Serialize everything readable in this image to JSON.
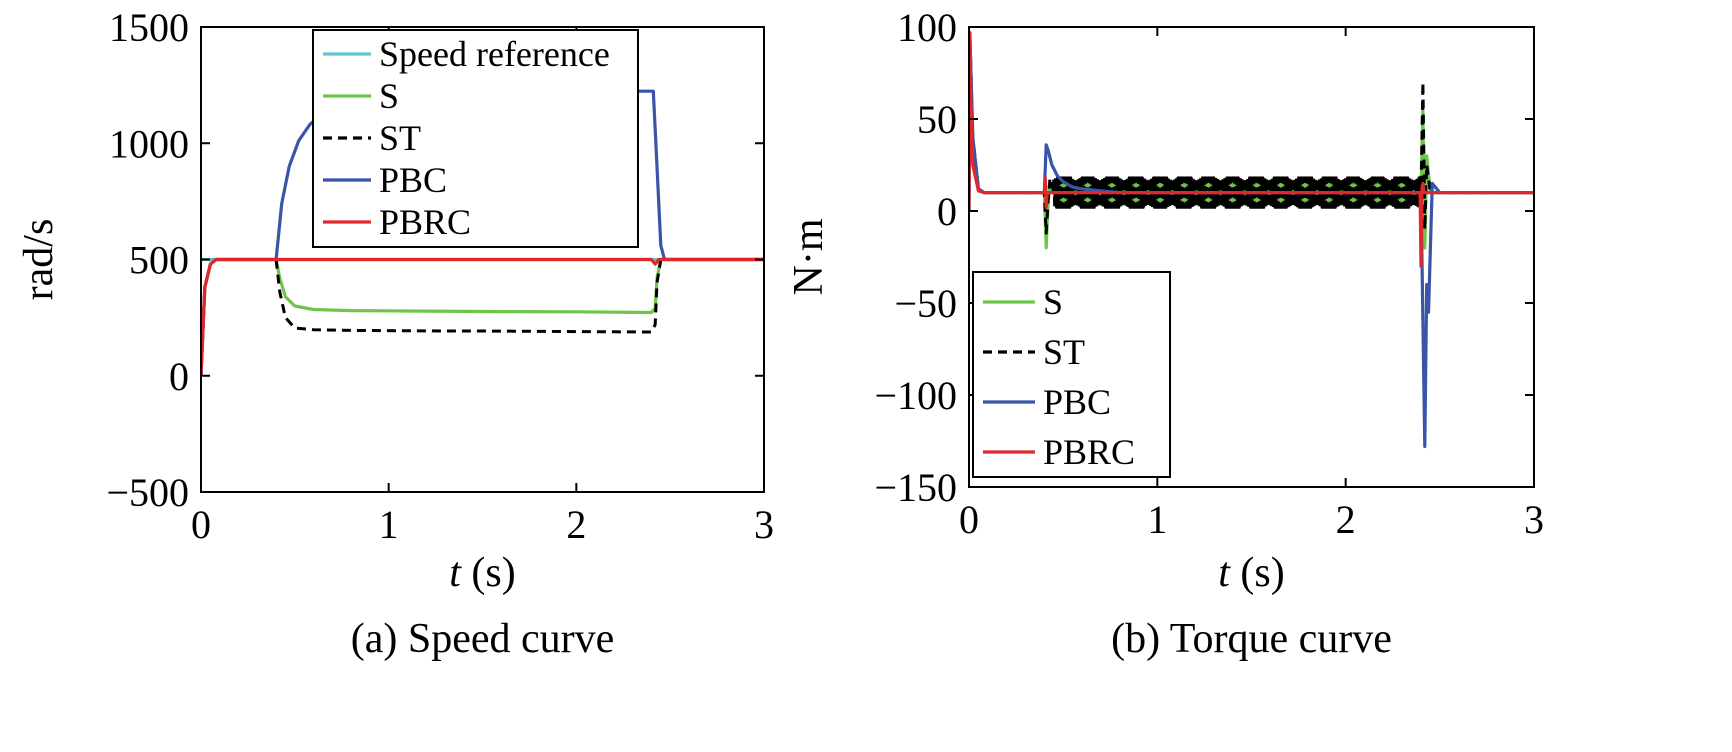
{
  "chart_data": [
    {
      "type": "line",
      "caption": "(a) Speed curve",
      "ylabel": "rad/s",
      "xlabel_var": "t",
      "xlabel_unit": " (s)",
      "xlim": [
        0,
        3
      ],
      "ylim": [
        -500,
        1500
      ],
      "xticks": [
        0,
        1,
        2,
        3
      ],
      "yticks": [
        -500,
        0,
        500,
        1000,
        1500
      ],
      "xtick_labels": [
        "0",
        "1",
        "2",
        "3"
      ],
      "ytick_labels": [
        "−500",
        "0",
        "500",
        "1000",
        "1500"
      ],
      "grid": false,
      "legend_position": "top-center",
      "legend": [
        "Speed reference",
        "S",
        "ST",
        "PBC",
        "PBRC"
      ],
      "series": [
        {
          "name": "Speed reference",
          "color": "#5ec8d0",
          "dash": "solid",
          "x": [
            0,
            3
          ],
          "y": [
            500,
            500
          ]
        },
        {
          "name": "S",
          "color": "#6dc64a",
          "dash": "solid",
          "x": [
            0,
            0.02,
            0.05,
            0.08,
            0.4,
            0.42,
            0.45,
            0.5,
            0.6,
            0.8,
            1.2,
            1.6,
            2.0,
            2.4,
            2.42,
            2.43,
            2.45,
            3.0
          ],
          "y": [
            0,
            380,
            480,
            500,
            500,
            420,
            340,
            300,
            285,
            280,
            278,
            276,
            275,
            272,
            290,
            420,
            500,
            500
          ]
        },
        {
          "name": "ST",
          "color": "#000000",
          "dash": "dashed",
          "x": [
            0,
            0.02,
            0.05,
            0.08,
            0.4,
            0.42,
            0.45,
            0.5,
            0.6,
            0.8,
            1.2,
            1.6,
            2.0,
            2.4,
            2.42,
            2.43,
            2.45,
            3.0
          ],
          "y": [
            0,
            380,
            480,
            500,
            500,
            360,
            250,
            205,
            198,
            195,
            193,
            192,
            190,
            188,
            220,
            400,
            500,
            500
          ]
        },
        {
          "name": "PBC",
          "color": "#3855a8",
          "dash": "solid",
          "x": [
            0,
            0.02,
            0.05,
            0.08,
            0.4,
            0.43,
            0.47,
            0.52,
            0.58,
            0.65,
            0.75,
            0.9,
            1.1,
            1.4,
            1.8,
            2.2,
            2.41,
            2.43,
            2.45,
            2.47,
            3.0
          ],
          "y": [
            0,
            380,
            480,
            500,
            500,
            740,
            900,
            1010,
            1080,
            1130,
            1170,
            1195,
            1210,
            1218,
            1222,
            1224,
            1224,
            900,
            560,
            500,
            500
          ]
        },
        {
          "name": "PBRC",
          "color": "#e0282c",
          "dash": "solid",
          "x": [
            0,
            0.02,
            0.05,
            0.08,
            2.4,
            2.42,
            2.44,
            2.46,
            3.0
          ],
          "y": [
            0,
            380,
            480,
            500,
            500,
            480,
            500,
            500,
            500
          ]
        }
      ]
    },
    {
      "type": "line",
      "caption": "(b) Torque curve",
      "ylabel": "N·m",
      "xlabel_var": "t",
      "xlabel_unit": " (s)",
      "xlim": [
        0,
        3
      ],
      "ylim": [
        -150,
        100
      ],
      "xticks": [
        0,
        1,
        2,
        3
      ],
      "yticks": [
        -150,
        -100,
        -50,
        0,
        50,
        100
      ],
      "xtick_labels": [
        "0",
        "1",
        "2",
        "3"
      ],
      "ytick_labels": [
        "−150",
        "−100",
        "−50",
        "0",
        "50",
        "100"
      ],
      "grid": false,
      "legend_position": "bottom-left",
      "legend": [
        "S",
        "ST",
        "PBC",
        "PBRC"
      ],
      "series": [
        {
          "name": "S",
          "color": "#6dc64a",
          "dash": "solid",
          "osc": {
            "from": 0.45,
            "to": 2.4,
            "center": 10,
            "amp": 6,
            "period": 0.012
          },
          "x": [
            0,
            0.005,
            0.02,
            0.05,
            0.08,
            0.4,
            0.41,
            0.42,
            0.43,
            0.45,
            2.4,
            2.41,
            2.42,
            2.43,
            2.45,
            3.0
          ],
          "y": [
            0,
            95,
            40,
            12,
            10,
            10,
            -20,
            5,
            15,
            10,
            10,
            55,
            -20,
            30,
            10,
            10
          ]
        },
        {
          "name": "ST",
          "color": "#000000",
          "dash": "dashed",
          "osc": {
            "from": 0.45,
            "to": 2.4,
            "center": 10,
            "amp": 8,
            "period": 0.01
          },
          "x": [
            0,
            0.005,
            0.02,
            0.05,
            0.08,
            0.4,
            0.41,
            0.42,
            0.43,
            0.45,
            2.4,
            2.41,
            2.42,
            2.43,
            2.45,
            3.0
          ],
          "y": [
            0,
            95,
            40,
            12,
            10,
            10,
            -12,
            5,
            18,
            10,
            10,
            70,
            -10,
            25,
            10,
            10
          ]
        },
        {
          "name": "PBC",
          "color": "#3855a8",
          "dash": "solid",
          "x": [
            0,
            0.005,
            0.02,
            0.05,
            0.08,
            0.4,
            0.41,
            0.42,
            0.44,
            0.47,
            0.5,
            0.55,
            0.6,
            0.7,
            0.8,
            2.4,
            2.41,
            2.42,
            2.43,
            2.44,
            2.46,
            2.5,
            3.0
          ],
          "y": [
            0,
            95,
            40,
            12,
            10,
            10,
            36,
            33,
            25,
            19,
            16,
            13,
            12,
            11,
            10,
            10,
            -60,
            -128,
            -40,
            -55,
            15,
            10,
            10
          ]
        },
        {
          "name": "PBRC",
          "color": "#e0282c",
          "dash": "solid",
          "x": [
            0,
            0.005,
            0.01,
            0.02,
            0.05,
            0.08,
            0.4,
            0.405,
            0.41,
            0.415,
            0.42,
            2.395,
            2.4,
            2.405,
            2.41,
            2.415,
            3.0
          ],
          "y": [
            0,
            97,
            60,
            25,
            11,
            10,
            10,
            18,
            2,
            10,
            10,
            10,
            -30,
            12,
            15,
            10,
            10
          ]
        }
      ]
    }
  ]
}
